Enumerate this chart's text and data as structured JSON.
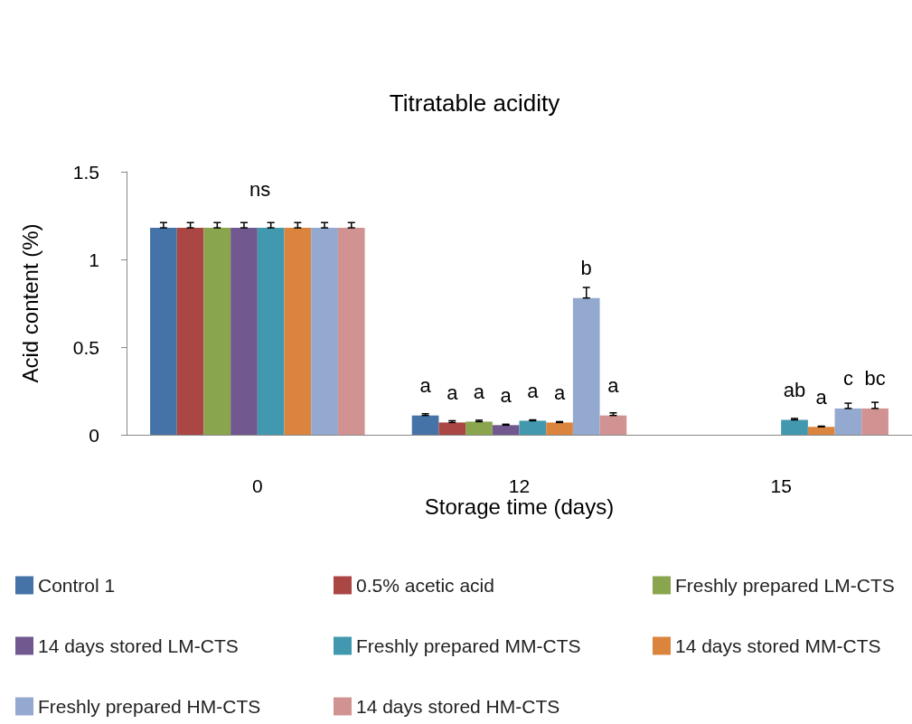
{
  "chart_data": {
    "type": "bar",
    "title": "Titratable acidity",
    "xlabel": "Storage time (days)",
    "ylabel": "Acid content (%)",
    "categories": [
      "0",
      "12",
      "15"
    ],
    "series": [
      {
        "name": "Control 1",
        "color": "#4572a7",
        "values": [
          1.18,
          0.11,
          null
        ],
        "errors": [
          [
            1.18,
            1.21
          ],
          [
            0.11,
            0.12
          ],
          null
        ],
        "value_labels": [
          null,
          "a",
          null
        ]
      },
      {
        "name": "0.5% acetic acid",
        "color": "#aa4643",
        "values": [
          1.18,
          0.07,
          null
        ],
        "errors": [
          [
            1.18,
            1.21
          ],
          [
            0.07,
            0.08
          ],
          null
        ],
        "value_labels": [
          null,
          "a",
          null
        ]
      },
      {
        "name": "Freshly prepared LM-CTS",
        "color": "#89a54e",
        "values": [
          1.18,
          0.075,
          null
        ],
        "errors": [
          [
            1.18,
            1.21
          ],
          [
            0.075,
            0.083
          ],
          null
        ],
        "value_labels": [
          null,
          "a",
          null
        ]
      },
      {
        "name": "14 days stored LM-CTS",
        "color": "#71588f",
        "values": [
          1.18,
          0.055,
          null
        ],
        "errors": [
          [
            1.18,
            1.21
          ],
          [
            0.055,
            0.06
          ],
          null
        ],
        "value_labels": [
          null,
          "a",
          null
        ]
      },
      {
        "name": "Freshly prepared MM-CTS",
        "color": "#4198af",
        "values": [
          1.18,
          0.08,
          0.085
        ],
        "errors": [
          [
            1.18,
            1.21
          ],
          [
            0.08,
            0.085
          ],
          [
            0.085,
            0.093
          ]
        ],
        "value_labels": [
          null,
          "a",
          "ab"
        ]
      },
      {
        "name": "14 days stored MM-CTS",
        "color": "#db843d",
        "values": [
          1.18,
          0.07,
          0.045
        ],
        "errors": [
          [
            1.18,
            1.21
          ],
          [
            0.07,
            0.075
          ],
          [
            0.045,
            0.049
          ]
        ],
        "value_labels": [
          null,
          "a",
          "a"
        ]
      },
      {
        "name": "Freshly prepared HM-CTS",
        "color": "#93a9cf",
        "values": [
          1.18,
          0.78,
          0.15
        ],
        "errors": [
          [
            1.18,
            1.21
          ],
          [
            0.78,
            0.84
          ],
          [
            0.15,
            0.18
          ]
        ],
        "value_labels": [
          null,
          "b",
          "c"
        ]
      },
      {
        "name": "14 days stored HM-CTS",
        "color": "#d19392",
        "values": [
          1.18,
          0.11,
          0.15
        ],
        "errors": [
          [
            1.18,
            1.21
          ],
          [
            0.11,
            0.125
          ],
          [
            0.15,
            0.185
          ]
        ],
        "value_labels": [
          null,
          "a",
          "bc"
        ]
      }
    ],
    "annotations": [
      "ns"
    ],
    "ylim": [
      0,
      1.5
    ],
    "yticks": [
      0,
      0.5,
      1,
      1.5
    ],
    "grid": false,
    "legend": "bottom"
  }
}
